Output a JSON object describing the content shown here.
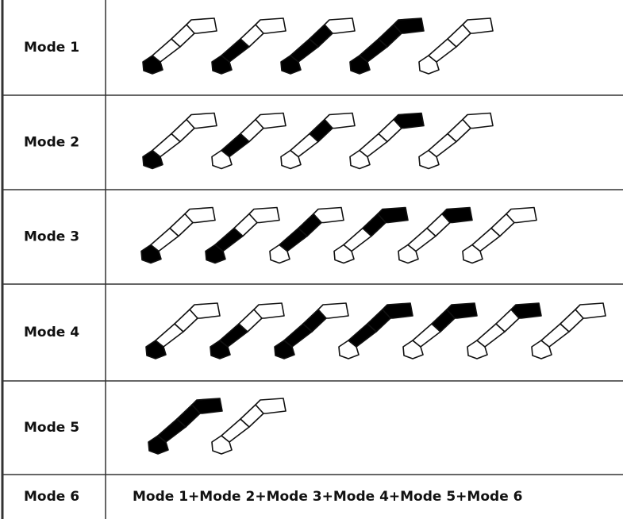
{
  "table": {
    "rows": [
      [
        "Mode 1"
      ],
      [
        "Mode 2"
      ],
      [
        "Mode 3"
      ],
      [
        "Mode 4"
      ],
      [
        "Mode 5"
      ],
      [
        "Mode 6",
        "Mode 1+Mode 2+Mode 3+Mode 4+Mode 5+Mode 6"
      ]
    ]
  }
}
